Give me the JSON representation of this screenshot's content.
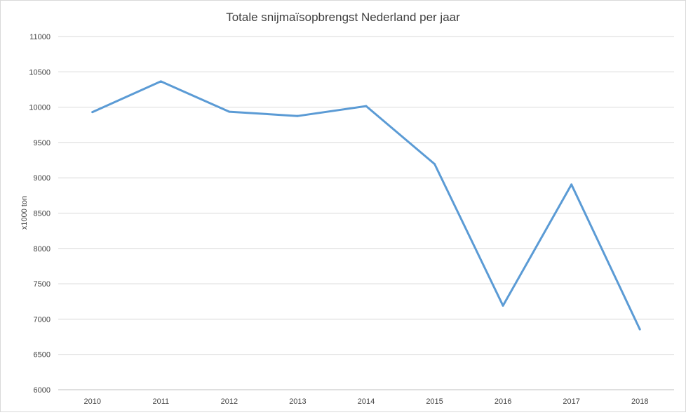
{
  "chart_data": {
    "type": "line",
    "title": "Totale snijmaïsopbrengst Nederland per jaar",
    "xlabel": "",
    "ylabel": "x1000 ton",
    "categories": [
      "2010",
      "2011",
      "2012",
      "2013",
      "2014",
      "2015",
      "2016",
      "2017",
      "2018"
    ],
    "series": [
      {
        "values": [
          9930,
          10365,
          9935,
          9875,
          10015,
          9195,
          7190,
          8905,
          6855
        ],
        "color": "#5b9bd5"
      }
    ],
    "ylim": [
      6000,
      11000
    ],
    "yticks": [
      "6000",
      "6500",
      "7000",
      "7500",
      "8000",
      "8500",
      "9000",
      "9500",
      "10000",
      "10500",
      "11000"
    ],
    "grid": true,
    "legend": "none"
  }
}
